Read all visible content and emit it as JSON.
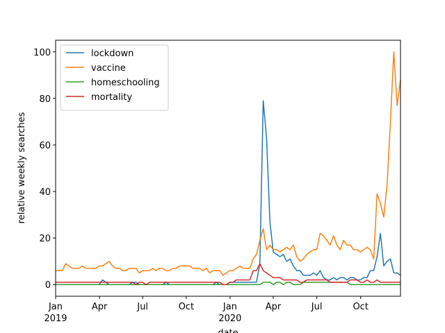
{
  "chart_data": {
    "type": "line",
    "xlabel": "date",
    "ylabel": "relative weekly searches",
    "xlim": [
      0,
      103
    ],
    "ylim": [
      -5,
      105
    ],
    "yticks": [
      0,
      20,
      40,
      60,
      80,
      100
    ],
    "xticks": [
      {
        "value": 0,
        "label": "Jan",
        "year": "2019"
      },
      {
        "value": 13.1,
        "label": "Apr"
      },
      {
        "value": 26,
        "label": "Jul"
      },
      {
        "value": 39,
        "label": "Oct"
      },
      {
        "value": 52.1,
        "label": "Jan",
        "year": "2020"
      },
      {
        "value": 65,
        "label": "Apr"
      },
      {
        "value": 78,
        "label": "Jul"
      },
      {
        "value": 91.1,
        "label": "Oct"
      }
    ],
    "legend": "upper left",
    "series": [
      {
        "name": "lockdown",
        "color": "#1f77b4",
        "values": [
          0,
          0,
          0,
          0,
          0,
          0,
          0,
          0,
          0,
          0,
          0,
          0,
          0,
          0,
          2,
          1,
          0,
          0,
          0,
          0,
          0,
          0,
          0,
          1,
          1,
          0,
          0,
          0,
          0,
          0,
          0,
          0,
          0,
          1,
          0,
          0,
          0,
          0,
          0,
          0,
          0,
          0,
          0,
          0,
          0,
          0,
          0,
          0,
          1,
          0,
          0,
          0,
          1,
          1,
          1,
          1,
          1,
          1,
          1,
          1,
          1,
          9,
          79,
          63,
          27,
          14,
          13,
          12,
          13,
          10,
          11,
          8,
          6,
          6,
          4,
          4,
          4,
          5,
          4,
          6,
          3,
          2,
          2,
          3,
          2,
          3,
          3,
          2,
          3,
          3,
          2,
          2,
          3,
          3,
          6,
          6,
          12,
          22,
          8,
          10,
          11,
          5,
          5,
          4
        ]
      },
      {
        "name": "vaccine",
        "color": "#ff7f0e",
        "values": [
          6,
          6,
          6,
          9,
          8,
          7,
          7,
          7,
          8,
          7,
          7,
          7,
          7,
          8,
          8,
          9,
          10,
          8,
          7,
          7,
          6,
          6,
          7,
          7,
          7,
          5,
          6,
          6,
          6,
          7,
          6,
          7,
          7,
          6,
          6,
          7,
          7,
          8,
          8,
          8,
          8,
          7,
          7,
          7,
          6,
          7,
          5,
          6,
          6,
          6,
          4,
          5,
          6,
          6,
          7,
          8,
          7,
          7,
          7,
          11,
          13,
          19,
          24,
          15,
          17,
          15,
          15,
          14,
          15,
          16,
          15,
          17,
          12,
          10,
          11,
          13,
          14,
          15,
          15,
          22,
          21,
          19,
          17,
          21,
          17,
          15,
          19,
          17,
          17,
          15,
          15,
          14,
          15,
          16,
          15,
          11,
          39,
          35,
          29,
          43,
          70,
          100,
          77,
          88
        ]
      },
      {
        "name": "homeschooling",
        "color": "#2ca02c",
        "values": [
          0,
          0,
          0,
          0,
          0,
          0,
          0,
          0,
          0,
          0,
          0,
          0,
          0,
          0,
          0,
          0,
          0,
          0,
          0,
          0,
          0,
          0,
          0,
          0,
          0,
          0,
          0,
          0,
          0,
          0,
          0,
          0,
          0,
          0,
          0,
          0,
          0,
          0,
          0,
          0,
          0,
          0,
          0,
          0,
          0,
          0,
          0,
          0,
          0,
          0,
          0,
          0,
          0,
          0,
          0,
          0,
          0,
          0,
          0,
          0,
          0,
          0,
          1,
          1,
          1,
          0,
          1,
          1,
          0,
          1,
          1,
          0,
          0,
          0,
          1,
          1,
          1,
          1,
          1,
          1,
          1,
          1,
          1,
          1,
          1,
          1,
          1,
          1,
          0,
          0,
          0,
          0,
          0,
          0,
          0,
          0,
          0,
          0,
          0,
          0,
          0,
          0,
          0,
          0
        ]
      },
      {
        "name": "mortality",
        "color": "#d62728",
        "values": [
          1,
          1,
          1,
          1,
          1,
          1,
          1,
          1,
          1,
          1,
          1,
          1,
          1,
          1,
          1,
          1,
          1,
          1,
          1,
          1,
          1,
          1,
          1,
          1,
          0,
          1,
          1,
          0,
          1,
          1,
          1,
          1,
          1,
          1,
          1,
          1,
          1,
          1,
          1,
          1,
          1,
          1,
          1,
          1,
          1,
          1,
          1,
          1,
          1,
          1,
          0,
          0,
          1,
          1,
          2,
          2,
          2,
          2,
          2,
          6,
          6,
          9,
          6,
          5,
          4,
          3,
          3,
          3,
          2,
          2,
          2,
          2,
          2,
          1,
          1,
          2,
          2,
          2,
          2,
          2,
          2,
          2,
          1,
          1,
          1,
          1,
          1,
          1,
          2,
          2,
          2,
          1,
          1,
          2,
          1,
          1,
          2,
          1,
          1,
          1,
          1,
          1,
          1,
          1
        ]
      }
    ]
  }
}
